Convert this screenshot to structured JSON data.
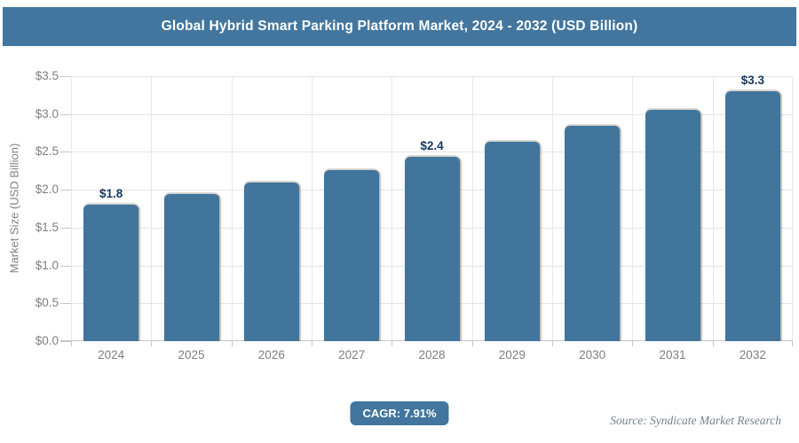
{
  "header": {
    "title": "Global Hybrid Smart Parking Platform Market, 2024 - 2032 (USD Billion)"
  },
  "chart_data": {
    "type": "bar",
    "title": "Global Hybrid Smart Parking Platform Market, 2024 - 2032 (USD Billion)",
    "categories": [
      "2024",
      "2025",
      "2026",
      "2027",
      "2028",
      "2029",
      "2030",
      "2031",
      "2032"
    ],
    "values": [
      1.8,
      1.94,
      2.1,
      2.26,
      2.44,
      2.63,
      2.84,
      3.06,
      3.3
    ],
    "point_labels": [
      "$1.8",
      "",
      "",
      "",
      "$2.4",
      "",
      "",
      "",
      "$3.3"
    ],
    "xlabel": "",
    "ylabel": "Market Size (USD Billion)",
    "ylim": [
      0,
      3.5
    ],
    "ytick_step": 0.5,
    "ytick_labels": [
      "$0.0",
      "$0.5",
      "$1.0",
      "$1.5",
      "$2.0",
      "$2.5",
      "$3.0",
      "$3.5"
    ],
    "grid": true,
    "legend": "none",
    "bar_color": "#41759c",
    "point_label_color": "#17375e"
  },
  "footer": {
    "cagr_label": "CAGR: 7.91%",
    "source": "Source: Syndicate Market Research"
  },
  "colors": {
    "accent": "#42769e",
    "axis_text": "#7f7f7f",
    "gridline": "#e4e4e4"
  }
}
